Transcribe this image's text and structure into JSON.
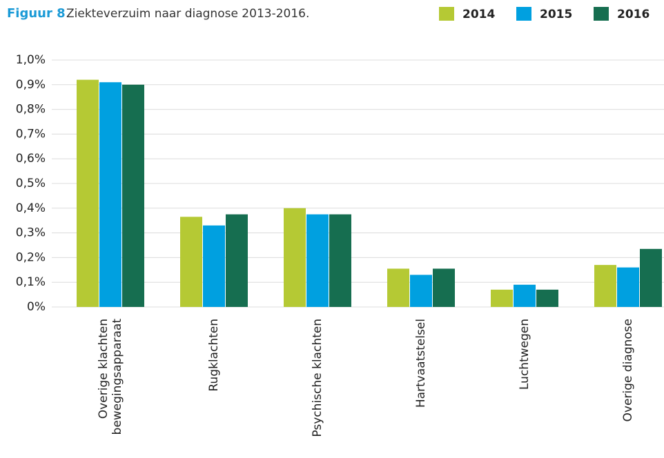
{
  "chart_data": {
    "type": "bar",
    "title": "Figuur 8",
    "subtitle": "Ziekteverzuim naar diagnose 2013-2016.",
    "categories": [
      "Overige klachten\nbewegingsapparaat",
      "Rugklachten",
      "Psychische klachten",
      "Hartvaatstelsel",
      "Luchtwegen",
      "Overige diagnose"
    ],
    "series": [
      {
        "name": "2014",
        "color": "#b5c934",
        "values": [
          0.92,
          0.365,
          0.4,
          0.155,
          0.07,
          0.17
        ]
      },
      {
        "name": "2015",
        "color": "#00a0e0",
        "values": [
          0.91,
          0.33,
          0.375,
          0.13,
          0.09,
          0.16
        ]
      },
      {
        "name": "2016",
        "color": "#166e50",
        "values": [
          0.9,
          0.375,
          0.375,
          0.155,
          0.07,
          0.235
        ]
      }
    ],
    "ylim": [
      0,
      1.0
    ],
    "yticks": [
      {
        "value": 0,
        "label": "0%"
      },
      {
        "value": 0.1,
        "label": "0,1%"
      },
      {
        "value": 0.2,
        "label": "0,2%"
      },
      {
        "value": 0.3,
        "label": "0,3%"
      },
      {
        "value": 0.4,
        "label": "0,4%"
      },
      {
        "value": 0.5,
        "label": "0,5%"
      },
      {
        "value": 0.6,
        "label": "0,6%"
      },
      {
        "value": 0.7,
        "label": "0,7%"
      },
      {
        "value": 0.8,
        "label": "0,8%"
      },
      {
        "value": 0.9,
        "label": "0,9%"
      },
      {
        "value": 1.0,
        "label": "1,0%"
      }
    ],
    "grid": true
  }
}
